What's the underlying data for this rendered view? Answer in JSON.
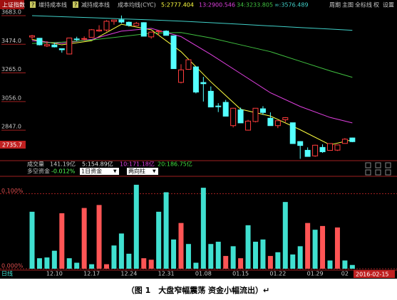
{
  "header": {
    "index_name": "上证指数",
    "items": [
      "增持成本线",
      "减持成本线",
      "成本均线(CYC)"
    ],
    "help": "?",
    "right_menu": [
      "周期",
      "主图",
      "全标线",
      "权",
      "设置"
    ]
  },
  "volume_row": {
    "title": "成交量",
    "value": "141.19亿",
    "ma": [
      {
        "text": "5:154.89亿",
        "color": "#e0e0e0"
      },
      {
        "text": "10:171.18亿",
        "color": "#e040e0"
      },
      {
        "text": "20:186.75亿",
        "color": "#40e040"
      }
    ]
  },
  "fund_row": {
    "title": "多空资金",
    "value": "-0.012%",
    "selectors": [
      "1日资金",
      "两向柱"
    ],
    "arrow": "▼"
  },
  "footer": {
    "period": "日线",
    "cursor_date": "2016-02-15",
    "cursor_price": "2735.7"
  },
  "caption": "（图 1　大盘窄幅震荡 资金小幅流出）↵",
  "chart_data": [
    {
      "type": "candlestick",
      "categories": [
        null,
        null,
        null,
        "12.10",
        null,
        null,
        null,
        null,
        "12.17",
        null,
        null,
        null,
        null,
        "12.24",
        null,
        null,
        null,
        null,
        "12.31",
        null,
        null,
        null,
        null,
        "01.08",
        null,
        null,
        null,
        null,
        "01.15",
        null,
        null,
        null,
        null,
        "01.22",
        null,
        null,
        null,
        null,
        "01.29",
        null,
        null,
        null,
        "02",
        null
      ],
      "open": [
        3527,
        3518,
        3462,
        3469,
        3442,
        3403,
        3513,
        3515,
        3525,
        3571,
        3578,
        3641,
        3653,
        3635,
        3610,
        3632,
        3528,
        3566,
        3570,
        3536,
        3196,
        3291,
        3309,
        3195,
        3131,
        3023,
        3050,
        2880,
        2995,
        2847,
        2910,
        3003,
        2934,
        2880,
        2923,
        2901,
        2764,
        2700,
        2659,
        2721,
        2699,
        2701,
        2750,
        2790
      ],
      "high": [
        3543,
        3518,
        3497,
        3485,
        3444,
        3521,
        3529,
        3532,
        3585,
        3613,
        3650,
        3652,
        3684,
        3640,
        3637,
        3635,
        3564,
        3573,
        3576,
        3538,
        3328,
        3362,
        3309,
        3236,
        3166,
        3044,
        3068,
        3010,
        3012,
        2922,
        3008,
        3022,
        2977,
        2917,
        2942,
        2901,
        2767,
        2721,
        2741,
        2744,
        2749,
        2739,
        2789,
        2793
      ],
      "low": [
        3506,
        3466,
        3454,
        3451,
        3413,
        3400,
        3497,
        3499,
        3525,
        3566,
        3567,
        3617,
        3626,
        3603,
        3608,
        3532,
        3515,
        3538,
        3538,
        3295,
        3189,
        3288,
        3115,
        3056,
        3016,
        2979,
        2949,
        2867,
        2899,
        2844,
        2904,
        2959,
        2880,
        2862,
        2905,
        2747,
        2638,
        2655,
        2652,
        2681,
        2697,
        2695,
        2750,
        2759
      ],
      "close": [
        3536,
        3470,
        3472,
        3455,
        3434,
        3520,
        3510,
        3516,
        3580,
        3578,
        3642,
        3651,
        3636,
        3612,
        3627,
        3533,
        3563,
        3572,
        3539,
        3296,
        3287,
        3361,
        3125,
        3186,
        3016,
        3022,
        2949,
        3007,
        2900,
        2913,
        3007,
        2976,
        2880,
        2916,
        2938,
        2749,
        2735,
        2655,
        2737,
        2689,
        2749,
        2739,
        2781,
        2763
      ],
      "up_color": "#ff3c3c",
      "down_color": "#54ffff",
      "lines": [
        {
          "name": "5:2777.404",
          "color": "#ffff40",
          "x": [
            0,
            4,
            8,
            12,
            16,
            20,
            24,
            28,
            32,
            36,
            40,
            43
          ],
          "values": [
            3510,
            3470,
            3500,
            3620,
            3580,
            3420,
            3200,
            3000,
            2950,
            2850,
            2740,
            2777
          ]
        },
        {
          "name": "13:2900.546",
          "color": "#e040e0",
          "x": [
            0,
            4,
            8,
            12,
            16,
            20,
            24,
            28,
            32,
            36,
            40,
            43
          ],
          "values": [
            3500,
            3480,
            3510,
            3570,
            3590,
            3530,
            3400,
            3260,
            3120,
            3020,
            2940,
            2900
          ]
        },
        {
          "name": "34:3233.805",
          "color": "#40c040",
          "x": [
            0,
            4,
            8,
            12,
            16,
            20,
            24,
            28,
            32,
            36,
            40,
            43
          ],
          "values": [
            3480,
            3490,
            3505,
            3530,
            3555,
            3560,
            3520,
            3470,
            3420,
            3350,
            3280,
            3233
          ]
        },
        {
          "name": "∞:3576.489",
          "color": "#40d0c8",
          "x": [
            0,
            4,
            8,
            12,
            16,
            20,
            24,
            28,
            32,
            36,
            40,
            43
          ],
          "values": [
            3683,
            3675,
            3668,
            3660,
            3652,
            3643,
            3632,
            3620,
            3608,
            3596,
            3585,
            3576
          ]
        }
      ],
      "ylim": [
        2645,
        3735
      ],
      "yticks": [
        {
          "value": 2847,
          "label": "2847.0"
        },
        {
          "value": 3056,
          "label": "3056.0"
        },
        {
          "value": 3265,
          "label": "3265.0"
        },
        {
          "value": 3474,
          "label": "3474.0"
        },
        {
          "value": 3683,
          "label": "3683.0"
        }
      ],
      "grid": false
    },
    {
      "type": "bar",
      "values": [
        0.076,
        0.014,
        0.015,
        0.024,
        0.074,
        0.014,
        0.008,
        0.081,
        0.006,
        0.085,
        0.006,
        0.031,
        0.047,
        0.02,
        0.112,
        0.014,
        0.012,
        0.076,
        0.102,
        0.039,
        0.061,
        0.033,
        0.008,
        0.108,
        0.033,
        0.036,
        0.017,
        0.03,
        0.014,
        0.058,
        0.036,
        0.039,
        0.017,
        0.022,
        0.089,
        0.019,
        0.03,
        0.061,
        0.052,
        0.057,
        0.011,
        0.055,
        0.011,
        0.005
      ],
      "colors": [
        "#40e0d0",
        "#40e0d0",
        "#40e0d0",
        "#40e0d0",
        "#ff5555",
        "#40e0d0",
        "#40e0d0",
        "#ff5555",
        "#40e0d0",
        "#ff5555",
        "#ff5555",
        "#40e0d0",
        "#40e0d0",
        "#40e0d0",
        "#40e0d0",
        "#ff5555",
        "#ff5555",
        "#40e0d0",
        "#40e0d0",
        "#40e0d0",
        "#ff5555",
        "#40e0d0",
        "#40e0d0",
        "#40e0d0",
        "#40e0d0",
        "#40e0d0",
        "#ff5555",
        "#40e0d0",
        "#ff5555",
        "#40e0d0",
        "#40e0d0",
        "#40e0d0",
        "#ff5555",
        "#40e0d0",
        "#40e0d0",
        "#40e0d0",
        "#40e0d0",
        "#ff5555",
        "#40e0d0",
        "#ff5555",
        "#40e0d0",
        "#ff5555",
        "#40e0d0",
        "#40e0d0"
      ],
      "ylim": [
        0,
        0.11
      ],
      "yticks": [
        {
          "value": 0,
          "label": "0.000%"
        },
        {
          "value": 0.1,
          "label": "0.100%"
        }
      ],
      "grid": true
    }
  ]
}
